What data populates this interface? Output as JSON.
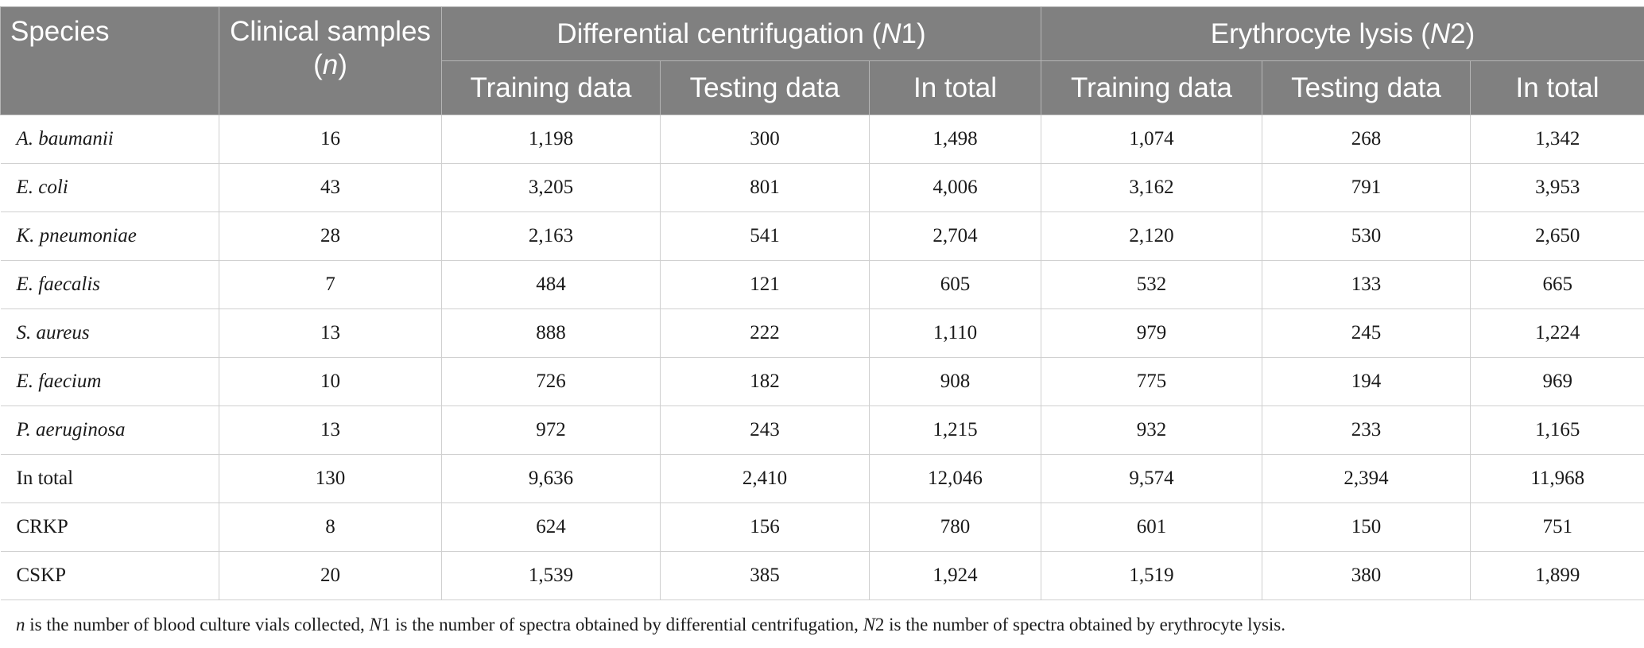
{
  "headers": {
    "species": "Species",
    "clinical": "Clinical samples (n)",
    "group1": "Differential centrifugation (N1)",
    "group2": "Erythrocyte lysis (N2)",
    "training": "Training data",
    "testing": "Testing data",
    "total": "In total"
  },
  "rows": [
    {
      "species": "A. baumanii",
      "italic": true,
      "n": "16",
      "n1_train": "1,198",
      "n1_test": "300",
      "n1_total": "1,498",
      "n2_train": "1,074",
      "n2_test": "268",
      "n2_total": "1,342"
    },
    {
      "species": "E. coli",
      "italic": true,
      "n": "43",
      "n1_train": "3,205",
      "n1_test": "801",
      "n1_total": "4,006",
      "n2_train": "3,162",
      "n2_test": "791",
      "n2_total": "3,953"
    },
    {
      "species": "K. pneumoniae",
      "italic": true,
      "n": "28",
      "n1_train": "2,163",
      "n1_test": "541",
      "n1_total": "2,704",
      "n2_train": "2,120",
      "n2_test": "530",
      "n2_total": "2,650"
    },
    {
      "species": "E. faecalis",
      "italic": true,
      "n": "7",
      "n1_train": "484",
      "n1_test": "121",
      "n1_total": "605",
      "n2_train": "532",
      "n2_test": "133",
      "n2_total": "665"
    },
    {
      "species": "S. aureus",
      "italic": true,
      "n": "13",
      "n1_train": "888",
      "n1_test": "222",
      "n1_total": "1,110",
      "n2_train": "979",
      "n2_test": "245",
      "n2_total": "1,224"
    },
    {
      "species": "E. faecium",
      "italic": true,
      "n": "10",
      "n1_train": "726",
      "n1_test": "182",
      "n1_total": "908",
      "n2_train": "775",
      "n2_test": "194",
      "n2_total": "969"
    },
    {
      "species": "P. aeruginosa",
      "italic": true,
      "n": "13",
      "n1_train": "972",
      "n1_test": "243",
      "n1_total": "1,215",
      "n2_train": "932",
      "n2_test": "233",
      "n2_total": "1,165"
    },
    {
      "species": "In total",
      "italic": false,
      "n": "130",
      "n1_train": "9,636",
      "n1_test": "2,410",
      "n1_total": "12,046",
      "n2_train": "9,574",
      "n2_test": "2,394",
      "n2_total": "11,968"
    },
    {
      "species": "CRKP",
      "italic": false,
      "n": "8",
      "n1_train": "624",
      "n1_test": "156",
      "n1_total": "780",
      "n2_train": "601",
      "n2_test": "150",
      "n2_total": "751"
    },
    {
      "species": "CSKP",
      "italic": false,
      "n": "20",
      "n1_train": "1,539",
      "n1_test": "385",
      "n1_total": "1,924",
      "n2_train": "1,519",
      "n2_test": "380",
      "n2_total": "1,899"
    }
  ],
  "footnote": "n is the number of blood culture vials collected, N1 is the number of spectra obtained by differential centrifugation, N2 is the number of spectra obtained by erythrocyte lysis."
}
